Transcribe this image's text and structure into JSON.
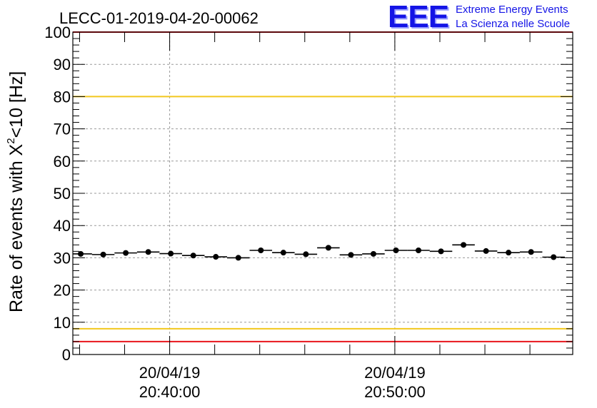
{
  "header": {
    "run_title": "LECC-01-2019-04-20-00062",
    "logo_mark": "EEE",
    "logo_line1": "Extreme Energy Events",
    "logo_line2": "La Scienza nelle Scuole"
  },
  "chart_data": {
    "type": "scatter",
    "title": "LECC-01-2019-04-20-00062",
    "ylabel_main": "Rate of events with X",
    "ylabel_sup": "2",
    "ylabel_tail": "<10 [Hz]",
    "xlabel": "",
    "ylim": [
      0,
      100
    ],
    "y_ticks": [
      0,
      10,
      20,
      30,
      40,
      50,
      60,
      70,
      80,
      90,
      100
    ],
    "x_tick_labels": [
      {
        "date": "20/04/19",
        "time": "20:40:00",
        "minute": 0
      },
      {
        "date": "20/04/19",
        "time": "20:50:00",
        "minute": 10
      }
    ],
    "x_range_minutes": [
      -4.3,
      17.9
    ],
    "grid": true,
    "legend": "none",
    "bin_width_minutes": 1.0,
    "points": [
      {
        "t": -3.95,
        "v": 31.2
      },
      {
        "t": -2.95,
        "v": 31.0
      },
      {
        "t": -1.95,
        "v": 31.5
      },
      {
        "t": -0.95,
        "v": 31.8
      },
      {
        "t": 0.05,
        "v": 31.3
      },
      {
        "t": 1.05,
        "v": 30.7
      },
      {
        "t": 2.05,
        "v": 30.3
      },
      {
        "t": 3.05,
        "v": 30.0
      },
      {
        "t": 4.05,
        "v": 32.3
      },
      {
        "t": 5.05,
        "v": 31.6
      },
      {
        "t": 6.05,
        "v": 31.1
      },
      {
        "t": 7.05,
        "v": 33.1
      },
      {
        "t": 8.05,
        "v": 30.9
      },
      {
        "t": 9.05,
        "v": 31.2
      },
      {
        "t": 10.05,
        "v": 32.3
      },
      {
        "t": 11.05,
        "v": 32.3
      },
      {
        "t": 12.05,
        "v": 32.0
      },
      {
        "t": 13.05,
        "v": 34.0
      },
      {
        "t": 14.05,
        "v": 32.1
      },
      {
        "t": 15.05,
        "v": 31.6
      },
      {
        "t": 16.05,
        "v": 31.8
      },
      {
        "t": 17.05,
        "v": 30.2
      }
    ],
    "reference_lines": [
      {
        "value": 100,
        "color": "#e8141c"
      },
      {
        "value": 80,
        "color": "#f2c81e"
      },
      {
        "value": 8,
        "color": "#f2c81e"
      },
      {
        "value": 4,
        "color": "#e8141c"
      }
    ]
  }
}
